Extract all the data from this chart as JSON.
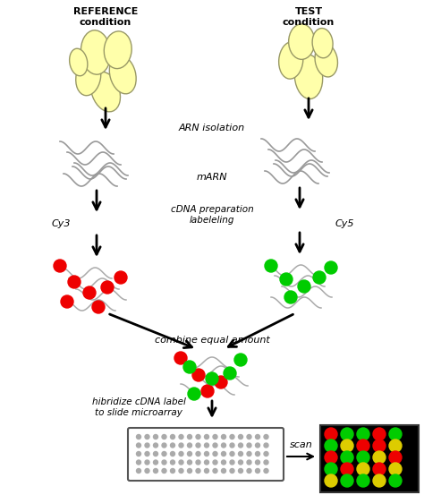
{
  "bg_color": "#ffffff",
  "title_left": "REFERENCE\ncondition",
  "title_right": "TEST\ncondition",
  "label_arn": "ARN isolation",
  "label_marn": "mARN",
  "label_cdna": "cDNA preparation\nlabeleling",
  "label_cy3": "Cy3",
  "label_cy5": "Cy5",
  "label_combine": "combine equal amount",
  "label_hibridize": "hibridize cDNA label\nto slide microarray",
  "label_scan": "scan",
  "cell_fill": "#ffffaa",
  "cell_edge": "#999966",
  "arrow_color": "#000000",
  "red_dot": "#ee0000",
  "green_dot": "#00cc00",
  "yellow_dot": "#ddcc00",
  "microarray_bg": "#000000",
  "microarray_colors": [
    [
      "#ee0000",
      "#00cc00",
      "#00cc00",
      "#ee0000",
      "#00cc00"
    ],
    [
      "#00cc00",
      "#ddcc00",
      "#ee0000",
      "#ee0000",
      "#ddcc00"
    ],
    [
      "#ee0000",
      "#00cc00",
      "#00cc00",
      "#ddcc00",
      "#ee0000"
    ],
    [
      "#00cc00",
      "#ee0000",
      "#ddcc00",
      "#ee0000",
      "#ddcc00"
    ],
    [
      "#ddcc00",
      "#00cc00",
      "#00cc00",
      "#ddcc00",
      "#00cc00"
    ]
  ]
}
